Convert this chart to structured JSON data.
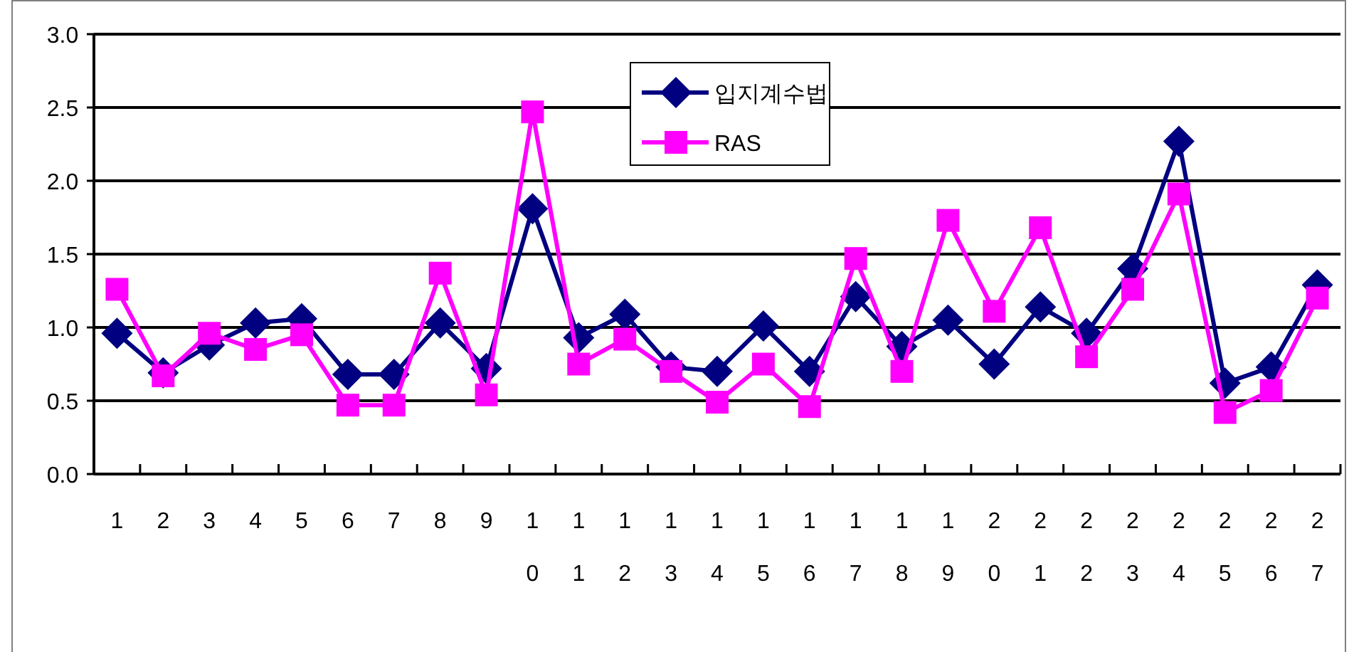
{
  "chart_data": {
    "type": "line",
    "categories": [
      "1",
      "2",
      "3",
      "4",
      "5",
      "6",
      "7",
      "8",
      "9",
      "10",
      "11",
      "12",
      "13",
      "14",
      "15",
      "16",
      "17",
      "18",
      "19",
      "20",
      "21",
      "22",
      "23",
      "24",
      "25",
      "26",
      "27"
    ],
    "series": [
      {
        "name": "입지계수법",
        "color": "#000080",
        "marker": "diamond",
        "values": [
          0.96,
          0.69,
          0.88,
          1.03,
          1.06,
          0.68,
          0.68,
          1.03,
          0.72,
          1.81,
          0.93,
          1.09,
          0.73,
          0.7,
          1.01,
          0.7,
          1.21,
          0.87,
          1.05,
          0.75,
          1.14,
          0.96,
          1.4,
          2.27,
          0.62,
          0.73,
          1.29
        ]
      },
      {
        "name": "RAS",
        "color": "#ff00ff",
        "marker": "square",
        "values": [
          1.26,
          0.67,
          0.96,
          0.85,
          0.95,
          0.47,
          0.47,
          1.37,
          0.54,
          2.47,
          0.75,
          0.92,
          0.7,
          0.49,
          0.75,
          0.46,
          1.47,
          0.7,
          1.73,
          1.11,
          1.68,
          0.8,
          1.26,
          1.91,
          0.42,
          0.57,
          1.2
        ]
      }
    ],
    "ylim": [
      0,
      3
    ],
    "yticks": [
      {
        "value": 0,
        "label": "0.0"
      },
      {
        "value": 0.5,
        "label": "0.5"
      },
      {
        "value": 1,
        "label": "1.0"
      },
      {
        "value": 1.5,
        "label": "1.5"
      },
      {
        "value": 2,
        "label": "2.0"
      },
      {
        "value": 2.5,
        "label": "2.5"
      },
      {
        "value": 3,
        "label": "3.0"
      }
    ],
    "grid": "y",
    "legend": "top",
    "line_style": "solid"
  }
}
